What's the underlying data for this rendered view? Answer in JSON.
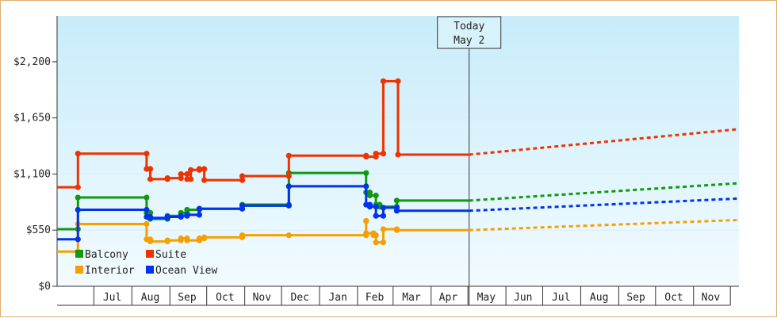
{
  "chart_data": {
    "type": "line",
    "title": "",
    "xlabel": "",
    "ylabel": "",
    "ylim": [
      0,
      2650
    ],
    "y_ticks": [
      {
        "value": 0,
        "label": "$0"
      },
      {
        "value": 550,
        "label": "$550"
      },
      {
        "value": 1100,
        "label": "$1,100"
      },
      {
        "value": 1650,
        "label": "$1,650"
      },
      {
        "value": 2200,
        "label": "$2,200"
      }
    ],
    "x_axis": {
      "start": "2023-06-01",
      "end": "2024-12-08",
      "ticks": [
        {
          "label": "Jul",
          "date": "2023-07-16"
        },
        {
          "label": "Aug",
          "date": "2023-08-16"
        },
        {
          "label": "Sep",
          "date": "2023-09-15"
        },
        {
          "label": "Oct",
          "date": "2023-10-16"
        },
        {
          "label": "Nov",
          "date": "2023-11-15"
        },
        {
          "label": "Dec",
          "date": "2023-12-16"
        },
        {
          "label": "Jan",
          "date": "2024-01-16"
        },
        {
          "label": "Feb",
          "date": "2024-02-15"
        },
        {
          "label": "Mar",
          "date": "2024-03-16"
        },
        {
          "label": "Apr",
          "date": "2024-04-15"
        },
        {
          "label": "May",
          "date": "2024-05-16"
        },
        {
          "label": "Jun",
          "date": "2024-06-15"
        },
        {
          "label": "Jul",
          "date": "2024-07-16"
        },
        {
          "label": "Aug",
          "date": "2024-08-16"
        },
        {
          "label": "Sep",
          "date": "2024-09-15"
        },
        {
          "label": "Oct",
          "date": "2024-10-16"
        },
        {
          "label": "Nov",
          "date": "2024-11-15"
        }
      ],
      "month_boundaries": [
        "2023-07-01",
        "2023-08-01",
        "2023-09-01",
        "2023-10-01",
        "2023-11-01",
        "2023-12-01",
        "2024-01-01",
        "2024-02-01",
        "2024-03-01",
        "2024-04-01",
        "2024-05-01",
        "2024-06-01",
        "2024-07-01",
        "2024-08-01",
        "2024-09-01",
        "2024-10-01",
        "2024-11-01",
        "2024-12-01"
      ]
    },
    "today": {
      "date": "2024-05-02",
      "line1": "Today",
      "line2": "May 2"
    },
    "legend": {
      "placement": "bottom-left"
    },
    "series": [
      {
        "name": "Balcony",
        "color": "#119911",
        "history": [
          [
            "2023-06-01",
            560
          ],
          [
            "2023-06-18",
            560
          ],
          [
            "2023-06-18",
            870
          ],
          [
            "2023-08-13",
            870
          ],
          [
            "2023-08-13",
            720
          ],
          [
            "2023-08-16",
            720
          ],
          [
            "2023-08-16",
            660
          ],
          [
            "2023-08-30",
            660
          ],
          [
            "2023-08-30",
            690
          ],
          [
            "2023-09-10",
            690
          ],
          [
            "2023-09-10",
            720
          ],
          [
            "2023-09-15",
            720
          ],
          [
            "2023-09-15",
            750
          ],
          [
            "2023-09-25",
            750
          ],
          [
            "2023-09-25",
            760
          ],
          [
            "2023-10-30",
            760
          ],
          [
            "2023-10-30",
            800
          ],
          [
            "2023-12-07",
            800
          ],
          [
            "2023-12-07",
            1110
          ],
          [
            "2024-02-08",
            1110
          ],
          [
            "2024-02-08",
            920
          ],
          [
            "2024-02-11",
            920
          ],
          [
            "2024-02-11",
            890
          ],
          [
            "2024-02-16",
            890
          ],
          [
            "2024-02-16",
            800
          ],
          [
            "2024-02-19",
            800
          ],
          [
            "2024-02-19",
            780
          ],
          [
            "2024-03-04",
            780
          ],
          [
            "2024-03-04",
            840
          ],
          [
            "2024-05-02",
            840
          ]
        ],
        "forecast_start": 840,
        "forecast_end": 1010
      },
      {
        "name": "Suite",
        "color": "#ee3300",
        "history": [
          [
            "2023-06-01",
            970
          ],
          [
            "2023-06-18",
            970
          ],
          [
            "2023-06-18",
            1300
          ],
          [
            "2023-08-13",
            1300
          ],
          [
            "2023-08-13",
            1150
          ],
          [
            "2023-08-16",
            1150
          ],
          [
            "2023-08-16",
            1050
          ],
          [
            "2023-08-30",
            1050
          ],
          [
            "2023-08-30",
            1060
          ],
          [
            "2023-09-10",
            1060
          ],
          [
            "2023-09-10",
            1100
          ],
          [
            "2023-09-15",
            1100
          ],
          [
            "2023-09-15",
            1050
          ],
          [
            "2023-09-18",
            1050
          ],
          [
            "2023-09-18",
            1140
          ],
          [
            "2023-09-25",
            1140
          ],
          [
            "2023-09-25",
            1150
          ],
          [
            "2023-09-29",
            1150
          ],
          [
            "2023-09-29",
            1040
          ],
          [
            "2023-10-30",
            1040
          ],
          [
            "2023-10-30",
            1080
          ],
          [
            "2023-12-07",
            1080
          ],
          [
            "2023-12-07",
            1280
          ],
          [
            "2024-02-08",
            1280
          ],
          [
            "2024-02-08",
            1270
          ],
          [
            "2024-02-16",
            1270
          ],
          [
            "2024-02-16",
            1300
          ],
          [
            "2024-02-22",
            1300
          ],
          [
            "2024-02-22",
            2010
          ],
          [
            "2024-03-05",
            2010
          ],
          [
            "2024-03-05",
            1290
          ],
          [
            "2024-05-02",
            1290
          ]
        ],
        "forecast_start": 1290,
        "forecast_end": 1540
      },
      {
        "name": "Interior",
        "color": "#f5a000",
        "history": [
          [
            "2023-06-01",
            340
          ],
          [
            "2023-06-18",
            340
          ],
          [
            "2023-06-18",
            610
          ],
          [
            "2023-08-13",
            610
          ],
          [
            "2023-08-13",
            460
          ],
          [
            "2023-08-16",
            460
          ],
          [
            "2023-08-16",
            440
          ],
          [
            "2023-08-30",
            440
          ],
          [
            "2023-08-30",
            450
          ],
          [
            "2023-09-10",
            450
          ],
          [
            "2023-09-10",
            470
          ],
          [
            "2023-09-15",
            470
          ],
          [
            "2023-09-15",
            450
          ],
          [
            "2023-09-25",
            450
          ],
          [
            "2023-09-25",
            470
          ],
          [
            "2023-09-29",
            470
          ],
          [
            "2023-09-29",
            480
          ],
          [
            "2023-10-30",
            480
          ],
          [
            "2023-10-30",
            500
          ],
          [
            "2023-12-07",
            500
          ],
          [
            "2024-02-08",
            500
          ],
          [
            "2024-02-08",
            640
          ],
          [
            "2024-02-08",
            640
          ],
          [
            "2024-02-08",
            520
          ],
          [
            "2024-02-14",
            520
          ],
          [
            "2024-02-14",
            500
          ],
          [
            "2024-02-16",
            500
          ],
          [
            "2024-02-16",
            430
          ],
          [
            "2024-02-22",
            430
          ],
          [
            "2024-02-22",
            560
          ],
          [
            "2024-03-04",
            560
          ],
          [
            "2024-03-04",
            550
          ],
          [
            "2024-05-02",
            550
          ]
        ],
        "forecast_start": 550,
        "forecast_end": 650
      },
      {
        "name": "Ocean View",
        "color": "#0033ee",
        "history": [
          [
            "2023-06-01",
            460
          ],
          [
            "2023-06-18",
            460
          ],
          [
            "2023-06-18",
            750
          ],
          [
            "2023-08-13",
            750
          ],
          [
            "2023-08-13",
            680
          ],
          [
            "2023-08-16",
            680
          ],
          [
            "2023-08-16",
            670
          ],
          [
            "2023-08-30",
            670
          ],
          [
            "2023-08-30",
            680
          ],
          [
            "2023-09-10",
            680
          ],
          [
            "2023-09-10",
            690
          ],
          [
            "2023-09-15",
            690
          ],
          [
            "2023-09-15",
            700
          ],
          [
            "2023-09-25",
            700
          ],
          [
            "2023-09-25",
            760
          ],
          [
            "2023-10-30",
            760
          ],
          [
            "2023-10-30",
            790
          ],
          [
            "2023-12-07",
            790
          ],
          [
            "2023-12-07",
            980
          ],
          [
            "2024-02-08",
            980
          ],
          [
            "2024-02-08",
            800
          ],
          [
            "2024-02-11",
            800
          ],
          [
            "2024-02-11",
            780
          ],
          [
            "2024-02-16",
            780
          ],
          [
            "2024-02-16",
            690
          ],
          [
            "2024-02-22",
            690
          ],
          [
            "2024-02-22",
            770
          ],
          [
            "2024-03-04",
            770
          ],
          [
            "2024-03-04",
            740
          ],
          [
            "2024-05-02",
            740
          ]
        ],
        "forecast_start": 740,
        "forecast_end": 860
      }
    ]
  }
}
